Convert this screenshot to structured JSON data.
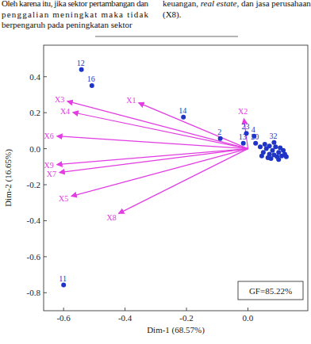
{
  "text_above": {
    "left": [
      [
        {
          "text": "Oleh karena itu, jika sektor pertambangan dan"
        }
      ],
      [
        {
          "text": "penggalian meningkat maka tidak"
        }
      ],
      [
        {
          "text": "berpengaruh pada peningkatan sektor"
        }
      ]
    ],
    "right": [
      [
        {
          "text": "keuangan, "
        },
        {
          "text": "real estate",
          "italic": true
        },
        {
          "text": ", dan jasa perusahaan"
        }
      ],
      [
        {
          "text": "(X8)."
        }
      ]
    ]
  },
  "chart_data": {
    "type": "biplot",
    "x_label": "Dim-1 (68.57%)",
    "y_label": "Dim-2 (16.65%)",
    "annotation": "GF=85.22%",
    "xlim": [
      -0.665,
      0.195
    ],
    "ylim": [
      -0.9,
      0.575
    ],
    "xticks": [
      -0.6,
      -0.4,
      -0.2,
      {
        "value": 0,
        "label": "0.0"
      }
    ],
    "yticks": [
      0.4,
      0.2,
      {
        "value": 0,
        "label": "0.0"
      },
      -0.2,
      -0.4,
      -0.6,
      -0.8
    ],
    "color": "#1f35c8",
    "marker": "circle",
    "point_labels": [
      "12",
      "16",
      "14",
      "2",
      "13",
      "23",
      "4",
      "11",
      "20",
      "32",
      null,
      null,
      null,
      null,
      null,
      null,
      null,
      null,
      null,
      null,
      null,
      null,
      null,
      null,
      null,
      null,
      null,
      null,
      null,
      null
    ],
    "x": [
      -0.542,
      -0.508,
      -0.21,
      -0.09,
      -0.015,
      -0.005,
      0.02,
      -0.6,
      0.025,
      0.085,
      0.04,
      0.05,
      0.06,
      0.07,
      0.08,
      0.09,
      0.1,
      0.11,
      0.12,
      0.065,
      0.075,
      0.095,
      0.105,
      0.115,
      0.045,
      0.055,
      0.085,
      0.125,
      0.1,
      0.07
    ],
    "values": [
      0.44,
      0.35,
      0.175,
      0.057,
      0.03,
      0.085,
      0.07,
      -0.757,
      0.03,
      0.035,
      0.01,
      -0.02,
      0.0,
      -0.03,
      -0.01,
      0.01,
      -0.02,
      -0.04,
      -0.03,
      -0.05,
      -0.055,
      -0.045,
      0.005,
      -0.01,
      -0.04,
      0.025,
      -0.035,
      -0.045,
      -0.06,
      0.015
    ],
    "vectors": [
      {
        "name": "X1",
        "x": -0.356,
        "y": 0.255
      },
      {
        "name": "X2",
        "x": -0.013,
        "y": 0.167
      },
      {
        "name": "X3",
        "x": -0.588,
        "y": 0.264
      },
      {
        "name": "X4",
        "x": -0.57,
        "y": 0.202
      },
      {
        "name": "X6",
        "x": -0.622,
        "y": 0.07
      },
      {
        "name": "X9",
        "x": -0.622,
        "y": -0.088
      },
      {
        "name": "X7",
        "x": -0.614,
        "y": -0.132
      },
      {
        "name": "X5",
        "x": -0.575,
        "y": -0.264
      },
      {
        "name": "X8",
        "x": -0.421,
        "y": -0.36
      }
    ],
    "vector_color": "#e23ce2"
  }
}
